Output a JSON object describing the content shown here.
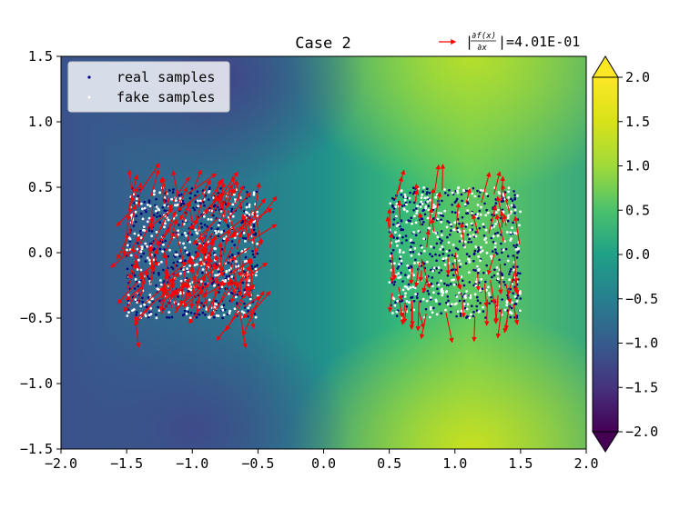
{
  "chart_data": {
    "type": "scatter",
    "title": "Case 2",
    "xlabel": "",
    "ylabel": "",
    "xlim": [
      -2.0,
      2.0
    ],
    "ylim": [
      -1.5,
      1.5
    ],
    "x_ticks": [
      "−2.0",
      "−1.5",
      "−1.0",
      "−0.5",
      "0.0",
      "0.5",
      "1.0",
      "1.5",
      "2.0"
    ],
    "x_tick_values": [
      -2.0,
      -1.5,
      -1.0,
      -0.5,
      0.0,
      0.5,
      1.0,
      1.5,
      2.0
    ],
    "y_ticks": [
      "−1.5",
      "−1.0",
      "−0.5",
      "0.0",
      "0.5",
      "1.0",
      "1.5"
    ],
    "y_tick_values": [
      -1.5,
      -1.0,
      -0.5,
      0.0,
      0.5,
      1.0,
      1.5
    ],
    "legend": {
      "placement": "upper-left",
      "entries": [
        {
          "label": "real samples",
          "color": "#00007f"
        },
        {
          "label": "fake samples",
          "color": "#ffffff"
        }
      ]
    },
    "gradient_annotation": {
      "prefix": "|",
      "numerator": "∂f(x)",
      "denominator": "∂x",
      "suffix": "|=4.01E-01",
      "arrow_color": "#ff0000"
    },
    "colorbar": {
      "range": [
        -2.0,
        2.0
      ],
      "ticks": [
        "2.0",
        "1.5",
        "1.0",
        "0.5",
        "0.0",
        "−0.5",
        "−1.0",
        "−1.5",
        "−2.0"
      ],
      "tick_values": [
        2.0,
        1.5,
        1.0,
        0.5,
        0.0,
        -0.5,
        -1.0,
        -1.5,
        -2.0
      ],
      "colormap": "viridis",
      "extend": "both"
    },
    "sample_regions": [
      {
        "name": "left-cluster",
        "x_range": [
          -1.5,
          -0.5
        ],
        "y_range": [
          -0.5,
          0.5
        ]
      },
      {
        "name": "right-cluster",
        "x_range": [
          0.5,
          1.5
        ],
        "y_range": [
          -0.5,
          0.5
        ]
      }
    ],
    "colors": {
      "real": "#00007f",
      "fake": "#ffffff",
      "arrow": "#ff0000"
    }
  }
}
